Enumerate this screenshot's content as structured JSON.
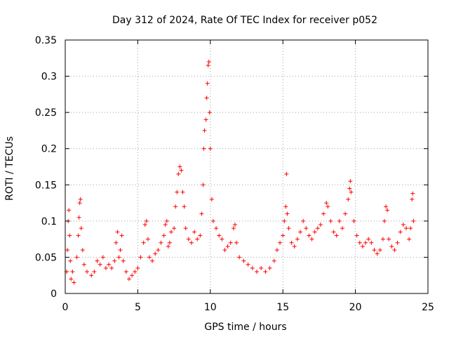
{
  "chart_data": {
    "type": "scatter",
    "title": "Day 312 of 2024, Rate Of TEC Index for receiver p052",
    "xlabel": "GPS time / hours",
    "ylabel": "ROTI / TECUs",
    "xlim": [
      0,
      25
    ],
    "ylim": [
      0,
      0.35
    ],
    "xticks": [
      0,
      5,
      10,
      15,
      20,
      25
    ],
    "xtick_labels": [
      "0",
      "5",
      "10",
      "15",
      "20",
      "25"
    ],
    "yticks": [
      0,
      0.05,
      0.1,
      0.15,
      0.2,
      0.25,
      0.3,
      0.35
    ],
    "ytick_labels": [
      "0",
      "0.05",
      "0.1",
      "0.15",
      "0.2",
      "0.25",
      "0.3",
      "0.35"
    ],
    "grid": true,
    "marker": "+",
    "color": "#ff0000",
    "series": [
      {
        "name": "ROTI",
        "points": [
          [
            0.1,
            0.03
          ],
          [
            0.15,
            0.06
          ],
          [
            0.2,
            0.1
          ],
          [
            0.25,
            0.115
          ],
          [
            0.3,
            0.08
          ],
          [
            0.35,
            0.045
          ],
          [
            0.4,
            0.02
          ],
          [
            0.5,
            0.03
          ],
          [
            0.6,
            0.015
          ],
          [
            0.8,
            0.05
          ],
          [
            0.9,
            0.08
          ],
          [
            0.95,
            0.105
          ],
          [
            1.0,
            0.125
          ],
          [
            1.05,
            0.13
          ],
          [
            1.1,
            0.09
          ],
          [
            1.2,
            0.06
          ],
          [
            1.3,
            0.04
          ],
          [
            1.5,
            0.03
          ],
          [
            1.8,
            0.025
          ],
          [
            2.0,
            0.03
          ],
          [
            2.2,
            0.045
          ],
          [
            2.4,
            0.04
          ],
          [
            2.6,
            0.05
          ],
          [
            2.8,
            0.035
          ],
          [
            3.0,
            0.04
          ],
          [
            3.2,
            0.035
          ],
          [
            3.4,
            0.045
          ],
          [
            3.5,
            0.07
          ],
          [
            3.6,
            0.085
          ],
          [
            3.7,
            0.05
          ],
          [
            3.8,
            0.06
          ],
          [
            3.9,
            0.08
          ],
          [
            4.0,
            0.045
          ],
          [
            4.2,
            0.03
          ],
          [
            4.4,
            0.02
          ],
          [
            4.6,
            0.025
          ],
          [
            4.8,
            0.03
          ],
          [
            5.0,
            0.035
          ],
          [
            5.2,
            0.05
          ],
          [
            5.4,
            0.07
          ],
          [
            5.5,
            0.095
          ],
          [
            5.6,
            0.1
          ],
          [
            5.7,
            0.075
          ],
          [
            5.8,
            0.05
          ],
          [
            6.0,
            0.045
          ],
          [
            6.2,
            0.055
          ],
          [
            6.4,
            0.06
          ],
          [
            6.6,
            0.07
          ],
          [
            6.8,
            0.08
          ],
          [
            6.9,
            0.095
          ],
          [
            7.0,
            0.1
          ],
          [
            7.1,
            0.065
          ],
          [
            7.2,
            0.07
          ],
          [
            7.3,
            0.085
          ],
          [
            7.5,
            0.09
          ],
          [
            7.6,
            0.12
          ],
          [
            7.7,
            0.14
          ],
          [
            7.8,
            0.165
          ],
          [
            7.9,
            0.175
          ],
          [
            8.0,
            0.17
          ],
          [
            8.1,
            0.14
          ],
          [
            8.2,
            0.12
          ],
          [
            8.3,
            0.09
          ],
          [
            8.5,
            0.075
          ],
          [
            8.7,
            0.07
          ],
          [
            8.9,
            0.085
          ],
          [
            9.1,
            0.075
          ],
          [
            9.3,
            0.08
          ],
          [
            9.4,
            0.11
          ],
          [
            9.5,
            0.15
          ],
          [
            9.55,
            0.2
          ],
          [
            9.6,
            0.225
          ],
          [
            9.7,
            0.24
          ],
          [
            9.75,
            0.27
          ],
          [
            9.8,
            0.29
          ],
          [
            9.85,
            0.315
          ],
          [
            9.9,
            0.32
          ],
          [
            9.95,
            0.25
          ],
          [
            10.0,
            0.2
          ],
          [
            10.1,
            0.13
          ],
          [
            10.2,
            0.1
          ],
          [
            10.4,
            0.09
          ],
          [
            10.6,
            0.08
          ],
          [
            10.8,
            0.075
          ],
          [
            11.0,
            0.06
          ],
          [
            11.2,
            0.065
          ],
          [
            11.4,
            0.07
          ],
          [
            11.6,
            0.09
          ],
          [
            11.7,
            0.095
          ],
          [
            11.8,
            0.07
          ],
          [
            12.0,
            0.05
          ],
          [
            12.3,
            0.045
          ],
          [
            12.6,
            0.04
          ],
          [
            12.9,
            0.035
          ],
          [
            13.2,
            0.03
          ],
          [
            13.5,
            0.035
          ],
          [
            13.8,
            0.03
          ],
          [
            14.1,
            0.035
          ],
          [
            14.4,
            0.045
          ],
          [
            14.6,
            0.06
          ],
          [
            14.8,
            0.07
          ],
          [
            15.0,
            0.08
          ],
          [
            15.1,
            0.1
          ],
          [
            15.2,
            0.12
          ],
          [
            15.25,
            0.165
          ],
          [
            15.3,
            0.11
          ],
          [
            15.4,
            0.09
          ],
          [
            15.6,
            0.07
          ],
          [
            15.8,
            0.065
          ],
          [
            16.0,
            0.075
          ],
          [
            16.2,
            0.085
          ],
          [
            16.4,
            0.1
          ],
          [
            16.6,
            0.09
          ],
          [
            16.8,
            0.08
          ],
          [
            17.0,
            0.075
          ],
          [
            17.2,
            0.085
          ],
          [
            17.4,
            0.09
          ],
          [
            17.6,
            0.095
          ],
          [
            17.8,
            0.11
          ],
          [
            18.0,
            0.125
          ],
          [
            18.1,
            0.12
          ],
          [
            18.3,
            0.1
          ],
          [
            18.5,
            0.085
          ],
          [
            18.7,
            0.08
          ],
          [
            18.9,
            0.1
          ],
          [
            19.1,
            0.09
          ],
          [
            19.3,
            0.11
          ],
          [
            19.5,
            0.13
          ],
          [
            19.6,
            0.145
          ],
          [
            19.65,
            0.155
          ],
          [
            19.7,
            0.14
          ],
          [
            19.9,
            0.1
          ],
          [
            20.1,
            0.08
          ],
          [
            20.3,
            0.07
          ],
          [
            20.5,
            0.065
          ],
          [
            20.7,
            0.07
          ],
          [
            20.9,
            0.075
          ],
          [
            21.1,
            0.07
          ],
          [
            21.3,
            0.06
          ],
          [
            21.5,
            0.055
          ],
          [
            21.7,
            0.06
          ],
          [
            21.9,
            0.075
          ],
          [
            22.0,
            0.1
          ],
          [
            22.1,
            0.12
          ],
          [
            22.2,
            0.115
          ],
          [
            22.3,
            0.075
          ],
          [
            22.5,
            0.065
          ],
          [
            22.7,
            0.06
          ],
          [
            22.9,
            0.07
          ],
          [
            23.1,
            0.085
          ],
          [
            23.3,
            0.095
          ],
          [
            23.5,
            0.09
          ],
          [
            23.7,
            0.075
          ],
          [
            23.8,
            0.09
          ],
          [
            23.9,
            0.13
          ],
          [
            23.95,
            0.138
          ],
          [
            24.0,
            0.1
          ]
        ]
      }
    ]
  }
}
